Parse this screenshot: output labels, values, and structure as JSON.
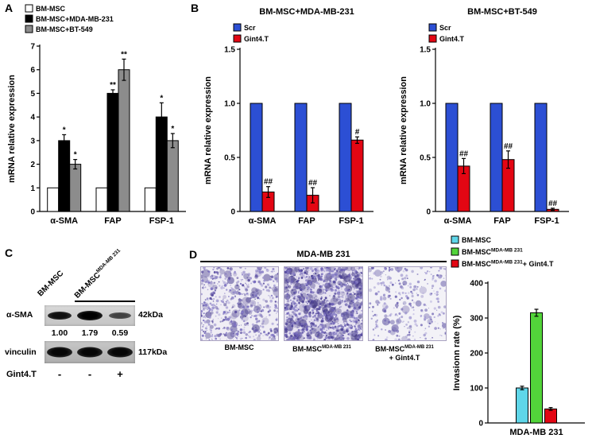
{
  "panels": {
    "A": "A",
    "B": "B",
    "C": "C",
    "D": "D"
  },
  "panelC": {
    "lane1_label": "BM-MSC",
    "lane23_label_base": "BM-MSC",
    "lane23_label_sup": "MDA-MB 231",
    "rows": [
      {
        "label": "α-SMA",
        "kda": "42kDa"
      },
      {
        "label": "vinculin",
        "kda": "117kDa"
      }
    ],
    "quantification": [
      "1.00",
      "1.79",
      "0.59"
    ],
    "treatment_label": "Gint4.T",
    "treatment_values": [
      "-",
      "-",
      "+"
    ]
  },
  "panelD": {
    "title": "MDA-MB 231",
    "images": [
      {
        "label_base": "BM-MSC",
        "label_sup": "",
        "label_suffix": "",
        "seed": 11,
        "dots": 520,
        "blobs": 70,
        "bg": "#f0eef5",
        "dot_colors": [
          "#7a6fc0",
          "#5a4ea0",
          "#9c93cf"
        ],
        "blob_color": "#4a3f8f"
      },
      {
        "label_base": "BM-MSC",
        "label_sup": "MDA-MB 231",
        "label_suffix": "",
        "seed": 23,
        "dots": 950,
        "blobs": 170,
        "bg": "#e7e3f1",
        "dot_colors": [
          "#6a5eb5",
          "#4a3f95",
          "#8d84c8"
        ],
        "blob_color": "#3c3180"
      },
      {
        "label_base": "BM-MSC",
        "label_sup": "MDA-MB 231",
        "label_suffix": "+ Gint4.T",
        "seed": 37,
        "dots": 280,
        "blobs": 32,
        "bg": "#f3f2f7",
        "dot_colors": [
          "#8b82c4",
          "#6d63b2",
          "#a79fd6"
        ],
        "blob_color": "#564b9e"
      }
    ]
  },
  "chart_data": [
    {
      "id": "chart-a",
      "type": "bar",
      "title": "",
      "ylabel": "mRNA relative expression",
      "ylim": [
        0,
        7
      ],
      "yticks": [
        0,
        1,
        2,
        3,
        4,
        5,
        6,
        7
      ],
      "ytick_labels": [
        "0",
        "1",
        "2",
        "3",
        "4",
        "5",
        "6",
        "7"
      ],
      "categories": [
        "α-SMA",
        "FAP",
        "FSP-1"
      ],
      "series": [
        {
          "name": "BM-MSC",
          "color": "#ffffff",
          "values": [
            1,
            1,
            1
          ],
          "errors": [
            0,
            0,
            0
          ],
          "sig": [
            "",
            "",
            ""
          ]
        },
        {
          "name": "BM-MSC+MDA-MB-231",
          "color": "#000000",
          "values": [
            3,
            5,
            4
          ],
          "errors": [
            0.25,
            0.15,
            0.6
          ],
          "sig": [
            "*",
            "**",
            "*"
          ]
        },
        {
          "name": "BM-MSC+BT-549",
          "color": "#8c8c8c",
          "values": [
            2,
            6,
            3
          ],
          "errors": [
            0.2,
            0.45,
            0.3
          ],
          "sig": [
            "*",
            "**",
            "*"
          ]
        }
      ],
      "legend": {
        "items": [
          {
            "label": "BM-MSC",
            "color": "#ffffff"
          },
          {
            "label": "BM-MSC+MDA-MB-231",
            "color": "#000000"
          },
          {
            "label": "BM-MSC+BT-549",
            "color": "#8c8c8c"
          }
        ]
      }
    },
    {
      "id": "chart-b1",
      "type": "bar",
      "title": "BM-MSC+MDA-MB-231",
      "ylabel": "mRNA relative expression",
      "ylim": [
        0,
        1.5
      ],
      "yticks": [
        0,
        0.5,
        1.0,
        1.5
      ],
      "ytick_labels": [
        "0",
        "0.5",
        "1.0",
        "1.5"
      ],
      "categories": [
        "α-SMA",
        "FAP",
        "FSP-1"
      ],
      "series": [
        {
          "name": "Scr",
          "color": "#2c4fd4",
          "values": [
            1.0,
            1.0,
            1.0
          ],
          "errors": [
            0,
            0,
            0
          ],
          "sig": [
            "",
            "",
            ""
          ]
        },
        {
          "name": "Gint4.T",
          "color": "#e30613",
          "values": [
            0.18,
            0.15,
            0.66
          ],
          "errors": [
            0.05,
            0.07,
            0.03
          ],
          "sig": [
            "##",
            "##",
            "#"
          ]
        }
      ],
      "legend": {
        "items": [
          {
            "label": "Scr",
            "color": "#2c4fd4"
          },
          {
            "label": "Gint4.T",
            "color": "#e30613"
          }
        ]
      }
    },
    {
      "id": "chart-b2",
      "type": "bar",
      "title": "BM-MSC+BT-549",
      "ylabel": "mRNA relative expression",
      "ylim": [
        0,
        1.5
      ],
      "yticks": [
        0,
        0.5,
        1.0,
        1.5
      ],
      "ytick_labels": [
        "0",
        "0.5",
        "1.0",
        "1.5"
      ],
      "categories": [
        "α-SMA",
        "FAP",
        "FSP-1"
      ],
      "series": [
        {
          "name": "Scr",
          "color": "#2c4fd4",
          "values": [
            1.0,
            1.0,
            1.0
          ],
          "errors": [
            0,
            0,
            0
          ],
          "sig": [
            "",
            "",
            ""
          ]
        },
        {
          "name": "Gint4.T",
          "color": "#e30613",
          "values": [
            0.42,
            0.48,
            0.02
          ],
          "errors": [
            0.07,
            0.08,
            0.01
          ],
          "sig": [
            "##",
            "##",
            "##"
          ]
        }
      ],
      "legend": {
        "items": [
          {
            "label": "Scr",
            "color": "#2c4fd4"
          },
          {
            "label": "Gint4.T",
            "color": "#e30613"
          }
        ]
      }
    },
    {
      "id": "chart-d",
      "type": "bar",
      "title": "",
      "ylabel": "Invasionn rate (%)",
      "ylim": [
        0,
        400
      ],
      "yticks": [
        0,
        100,
        200,
        300,
        400
      ],
      "ytick_labels": [
        "0",
        "100",
        "200",
        "300",
        "400"
      ],
      "categories": [
        "MDA-MB 231"
      ],
      "series": [
        {
          "name": "BM-MSC",
          "color": "#5fd6e9",
          "values": [
            100
          ],
          "errors": [
            5
          ],
          "sig": [
            ""
          ]
        },
        {
          "name": "BM-MSC MDA-MB 231",
          "color": "#52d43a",
          "values": [
            315
          ],
          "errors": [
            10
          ],
          "sig": [
            ""
          ]
        },
        {
          "name": "BM-MSC MDA-MB 231 + Gint4.T",
          "color": "#e30613",
          "values": [
            40
          ],
          "errors": [
            4
          ],
          "sig": [
            ""
          ]
        }
      ],
      "legend": {
        "items": [
          {
            "label": "BM-MSC",
            "color": "#5fd6e9"
          },
          {
            "label": "BM-MSC",
            "sup": "MDA-MB 231",
            "color": "#52d43a"
          },
          {
            "label": "BM-MSC",
            "sup": "MDA-MB 231",
            "suffix": "+ Gint4.T",
            "color": "#e30613"
          }
        ]
      }
    }
  ]
}
